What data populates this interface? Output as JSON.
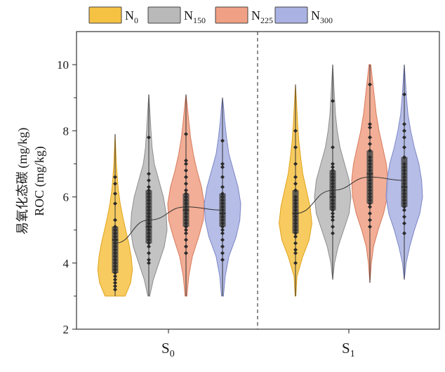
{
  "chart_data": {
    "type": "violin",
    "ylabel_cn": "易氧化态碳 (mg/kg)",
    "ylabel_en": "ROC (mg/kg)",
    "ylim": [
      2,
      11
    ],
    "yticks": [
      2,
      4,
      6,
      8,
      10
    ],
    "groups": [
      {
        "base": "S",
        "sub": "0"
      },
      {
        "base": "S",
        "sub": "1"
      }
    ],
    "legend": [
      {
        "base": "N",
        "sub": "0",
        "color": "#f6c244"
      },
      {
        "base": "N",
        "sub": "150",
        "color": "#b9b9b9"
      },
      {
        "base": "N",
        "sub": "225",
        "color": "#f0a084"
      },
      {
        "base": "N",
        "sub": "300",
        "color": "#a9b2e2"
      }
    ],
    "violins": [
      {
        "group": 0,
        "treatment": 0,
        "min": 3.0,
        "max": 7.9,
        "q1": 3.7,
        "median": 4.7,
        "q3": 5.1,
        "mean": 4.6,
        "profile": [
          [
            3.0,
            0.55
          ],
          [
            3.4,
            0.85
          ],
          [
            3.8,
            0.95
          ],
          [
            4.2,
            0.88
          ],
          [
            4.6,
            0.75
          ],
          [
            5.0,
            0.58
          ],
          [
            5.4,
            0.42
          ],
          [
            5.8,
            0.28
          ],
          [
            6.2,
            0.18
          ],
          [
            6.6,
            0.12
          ],
          [
            7.0,
            0.07
          ],
          [
            7.4,
            0.04
          ],
          [
            7.9,
            0.0
          ]
        ],
        "points": [
          3.2,
          3.3,
          3.4,
          3.5,
          3.6,
          3.7,
          3.8,
          3.9,
          4.0,
          4.1,
          4.2,
          4.3,
          4.4,
          4.5,
          4.6,
          4.7,
          4.8,
          4.9,
          5.0,
          5.1,
          5.3,
          5.8,
          6.1,
          6.4,
          6.6
        ]
      },
      {
        "group": 0,
        "treatment": 1,
        "min": 3.0,
        "max": 9.1,
        "q1": 4.6,
        "median": 5.1,
        "q3": 6.2,
        "mean": 5.3,
        "profile": [
          [
            3.0,
            0.05
          ],
          [
            3.5,
            0.25
          ],
          [
            4.0,
            0.55
          ],
          [
            4.5,
            0.85
          ],
          [
            5.0,
            1.0
          ],
          [
            5.5,
            0.95
          ],
          [
            6.0,
            0.8
          ],
          [
            6.5,
            0.55
          ],
          [
            7.0,
            0.3
          ],
          [
            7.5,
            0.18
          ],
          [
            8.0,
            0.12
          ],
          [
            8.5,
            0.07
          ],
          [
            9.1,
            0.0
          ]
        ],
        "points": [
          4.0,
          4.1,
          4.3,
          4.5,
          4.6,
          4.7,
          4.8,
          4.9,
          5.0,
          5.1,
          5.2,
          5.3,
          5.4,
          5.5,
          5.6,
          5.7,
          5.8,
          5.9,
          6.0,
          6.1,
          6.2,
          6.3,
          6.5,
          6.7,
          7.8
        ]
      },
      {
        "group": 0,
        "treatment": 2,
        "min": 3.0,
        "max": 9.1,
        "q1": 5.1,
        "median": 5.6,
        "q3": 6.1,
        "mean": 5.7,
        "profile": [
          [
            3.0,
            0.05
          ],
          [
            3.6,
            0.15
          ],
          [
            4.2,
            0.35
          ],
          [
            4.8,
            0.7
          ],
          [
            5.3,
            0.95
          ],
          [
            5.8,
            1.0
          ],
          [
            6.3,
            0.85
          ],
          [
            6.8,
            0.6
          ],
          [
            7.3,
            0.4
          ],
          [
            7.8,
            0.25
          ],
          [
            8.3,
            0.15
          ],
          [
            8.7,
            0.08
          ],
          [
            9.1,
            0.0
          ]
        ],
        "points": [
          4.3,
          4.5,
          4.7,
          4.9,
          5.0,
          5.1,
          5.2,
          5.3,
          5.4,
          5.5,
          5.6,
          5.7,
          5.8,
          5.9,
          6.0,
          6.1,
          6.2,
          6.4,
          6.6,
          6.8,
          7.0,
          7.1,
          7.9
        ]
      },
      {
        "group": 0,
        "treatment": 3,
        "min": 3.0,
        "max": 9.0,
        "q1": 5.1,
        "median": 5.5,
        "q3": 6.1,
        "mean": 5.6,
        "profile": [
          [
            3.0,
            0.05
          ],
          [
            3.6,
            0.15
          ],
          [
            4.2,
            0.35
          ],
          [
            4.8,
            0.75
          ],
          [
            5.3,
            0.95
          ],
          [
            5.8,
            1.0
          ],
          [
            6.3,
            0.85
          ],
          [
            6.8,
            0.6
          ],
          [
            7.3,
            0.35
          ],
          [
            7.8,
            0.22
          ],
          [
            8.3,
            0.12
          ],
          [
            8.7,
            0.06
          ],
          [
            9.0,
            0.0
          ]
        ],
        "points": [
          4.1,
          4.3,
          4.5,
          4.7,
          4.9,
          5.0,
          5.1,
          5.2,
          5.3,
          5.4,
          5.5,
          5.6,
          5.7,
          5.8,
          5.9,
          6.0,
          6.1,
          6.3,
          6.6,
          6.9,
          7.0,
          7.7
        ]
      },
      {
        "group": 1,
        "treatment": 0,
        "min": 3.0,
        "max": 9.4,
        "q1": 4.9,
        "median": 5.5,
        "q3": 6.2,
        "mean": 5.5,
        "profile": [
          [
            3.0,
            0.02
          ],
          [
            3.6,
            0.08
          ],
          [
            4.2,
            0.4
          ],
          [
            4.7,
            0.75
          ],
          [
            5.2,
            0.9
          ],
          [
            5.7,
            0.8
          ],
          [
            6.2,
            0.6
          ],
          [
            6.7,
            0.4
          ],
          [
            7.2,
            0.28
          ],
          [
            7.7,
            0.18
          ],
          [
            8.2,
            0.12
          ],
          [
            8.8,
            0.06
          ],
          [
            9.4,
            0.0
          ]
        ],
        "points": [
          4.0,
          4.3,
          4.4,
          4.6,
          4.8,
          4.9,
          5.0,
          5.1,
          5.2,
          5.3,
          5.4,
          5.5,
          5.6,
          5.7,
          5.8,
          5.9,
          6.0,
          6.2,
          6.4,
          6.6,
          7.0,
          7.5,
          8.0
        ]
      },
      {
        "group": 1,
        "treatment": 1,
        "min": 3.5,
        "max": 10.0,
        "q1": 5.6,
        "median": 6.0,
        "q3": 6.8,
        "mean": 6.2,
        "profile": [
          [
            3.5,
            0.0
          ],
          [
            4.0,
            0.1
          ],
          [
            4.5,
            0.3
          ],
          [
            5.0,
            0.6
          ],
          [
            5.5,
            0.9
          ],
          [
            6.0,
            1.0
          ],
          [
            6.5,
            0.9
          ],
          [
            7.0,
            0.65
          ],
          [
            7.5,
            0.4
          ],
          [
            8.0,
            0.25
          ],
          [
            8.5,
            0.15
          ],
          [
            9.0,
            0.1
          ],
          [
            9.5,
            0.05
          ],
          [
            10.0,
            0.0
          ]
        ],
        "points": [
          4.9,
          5.1,
          5.3,
          5.4,
          5.5,
          5.6,
          5.7,
          5.8,
          5.9,
          6.0,
          6.1,
          6.2,
          6.3,
          6.4,
          6.5,
          6.6,
          6.7,
          6.8,
          6.9,
          7.0,
          7.5,
          8.9
        ]
      },
      {
        "group": 1,
        "treatment": 2,
        "min": 3.4,
        "max": 10.0,
        "q1": 5.8,
        "median": 6.7,
        "q3": 7.4,
        "mean": 6.6,
        "profile": [
          [
            3.4,
            0.0
          ],
          [
            4.0,
            0.08
          ],
          [
            4.5,
            0.2
          ],
          [
            5.0,
            0.45
          ],
          [
            5.5,
            0.75
          ],
          [
            6.0,
            0.95
          ],
          [
            6.5,
            1.0
          ],
          [
            7.0,
            0.9
          ],
          [
            7.5,
            0.7
          ],
          [
            8.0,
            0.5
          ],
          [
            8.5,
            0.35
          ],
          [
            9.0,
            0.25
          ],
          [
            9.5,
            0.15
          ],
          [
            10.0,
            0.05
          ]
        ],
        "points": [
          5.1,
          5.3,
          5.5,
          5.7,
          5.8,
          5.9,
          6.0,
          6.1,
          6.2,
          6.3,
          6.4,
          6.5,
          6.6,
          6.7,
          6.8,
          6.9,
          7.0,
          7.1,
          7.2,
          7.4,
          7.6,
          7.8,
          8.1,
          8.2,
          9.4
        ]
      },
      {
        "group": 1,
        "treatment": 3,
        "min": 3.5,
        "max": 10.0,
        "q1": 5.7,
        "median": 6.3,
        "q3": 7.2,
        "mean": 6.5,
        "profile": [
          [
            3.5,
            0.0
          ],
          [
            4.0,
            0.1
          ],
          [
            4.5,
            0.3
          ],
          [
            5.0,
            0.55
          ],
          [
            5.5,
            0.85
          ],
          [
            6.0,
            1.0
          ],
          [
            6.5,
            0.95
          ],
          [
            7.0,
            0.8
          ],
          [
            7.5,
            0.55
          ],
          [
            8.0,
            0.35
          ],
          [
            8.5,
            0.2
          ],
          [
            9.0,
            0.12
          ],
          [
            9.5,
            0.06
          ],
          [
            10.0,
            0.0
          ]
        ],
        "points": [
          4.9,
          5.2,
          5.4,
          5.6,
          5.7,
          5.8,
          5.9,
          6.0,
          6.1,
          6.2,
          6.3,
          6.4,
          6.5,
          6.6,
          6.7,
          6.8,
          6.9,
          7.0,
          7.2,
          7.5,
          7.8,
          8.0,
          8.2,
          9.1
        ]
      }
    ]
  }
}
